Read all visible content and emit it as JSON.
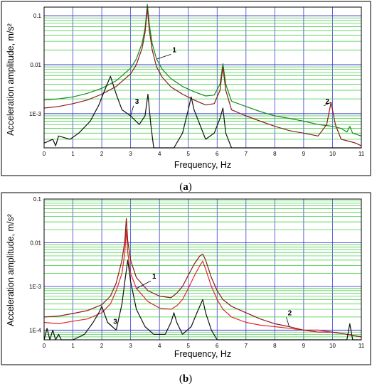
{
  "captions": [
    {
      "open": "(",
      "letter": "a",
      "close": ")"
    },
    {
      "open": "(",
      "letter": "b",
      "close": ")"
    }
  ],
  "chart_data": [
    {
      "type": "line",
      "panel": "a",
      "xlabel": "Frequency, Hz",
      "ylabel": "Acceleration amplitude, m/s²",
      "xlim": [
        0,
        11
      ],
      "ylim": [
        0.0002,
        0.15
      ],
      "yscale": "log",
      "grid": true,
      "xticks": [
        "0",
        "1",
        "2",
        "3",
        "4",
        "5",
        "6",
        "7",
        "8",
        "9",
        "10",
        "11"
      ],
      "yticks": [
        {
          "value": 0.1,
          "label": "0.1"
        },
        {
          "value": 0.01,
          "label": "0.01"
        },
        {
          "value": 0.001,
          "label": "1E-3"
        }
      ],
      "series": [
        {
          "name": "1",
          "color": "#1a8a1a",
          "x": [
            0,
            0.5,
            1,
            1.5,
            2,
            2.5,
            3,
            3.2,
            3.4,
            3.5,
            3.58,
            3.65,
            3.75,
            3.9,
            4.1,
            4.4,
            4.8,
            5.2,
            5.6,
            5.9,
            6.1,
            6.2,
            6.3,
            6.5,
            7,
            7.5,
            8,
            8.5,
            9,
            9.5,
            10,
            10.3,
            10.5,
            10.6,
            10.7,
            11
          ],
          "y": [
            0.0019,
            0.002,
            0.0022,
            0.0026,
            0.0033,
            0.0047,
            0.0085,
            0.013,
            0.028,
            0.055,
            0.17,
            0.065,
            0.027,
            0.013,
            0.008,
            0.0052,
            0.0036,
            0.0028,
            0.0023,
            0.0024,
            0.004,
            0.0105,
            0.004,
            0.0018,
            0.0014,
            0.0011,
            0.0009,
            0.0008,
            0.0007,
            0.0006,
            0.00055,
            0.0005,
            0.00042,
            0.00055,
            0.0004,
            0.00035
          ]
        },
        {
          "name": "2",
          "color": "#8b1a1a",
          "x": [
            0,
            0.5,
            1,
            1.5,
            2,
            2.5,
            3,
            3.2,
            3.4,
            3.5,
            3.58,
            3.65,
            3.75,
            3.9,
            4.1,
            4.4,
            4.8,
            5.2,
            5.6,
            5.9,
            6.1,
            6.2,
            6.3,
            6.5,
            7,
            7.5,
            8,
            8.5,
            9,
            9.5,
            9.8,
            9.95,
            10.1,
            10.3,
            10.6,
            10.8,
            11
          ],
          "y": [
            0.0013,
            0.0014,
            0.0016,
            0.0019,
            0.0025,
            0.0036,
            0.0065,
            0.01,
            0.022,
            0.045,
            0.14,
            0.05,
            0.02,
            0.009,
            0.0055,
            0.0035,
            0.0025,
            0.0019,
            0.0015,
            0.0016,
            0.003,
            0.009,
            0.003,
            0.0012,
            0.0009,
            0.0007,
            0.00055,
            0.00045,
            0.0004,
            0.00035,
            0.0006,
            0.0017,
            0.0006,
            0.0003,
            0.00027,
            0.00025,
            0.00022
          ]
        },
        {
          "name": "3",
          "color": "#111111",
          "x": [
            0,
            0.3,
            0.4,
            0.5,
            0.9,
            1.2,
            1.6,
            1.9,
            2.1,
            2.3,
            2.5,
            2.7,
            3.0,
            3.3,
            3.5,
            3.6,
            3.7,
            3.8,
            4.0,
            4.5,
            4.8,
            5.0,
            5.1,
            5.2,
            5.4,
            5.6,
            5.9,
            6.1,
            6.2,
            6.3,
            6.5,
            7,
            8,
            11
          ],
          "y": [
            0.00025,
            0.0003,
            0.00022,
            0.00035,
            0.0003,
            0.0004,
            0.0007,
            0.0015,
            0.003,
            0.0058,
            0.0025,
            0.0012,
            0.0009,
            0.0006,
            0.0009,
            0.0025,
            0.0006,
            0.0002,
            0.0002,
            0.0002,
            0.0004,
            0.0012,
            0.0022,
            0.0012,
            0.0006,
            0.0003,
            0.0004,
            0.0008,
            0.0013,
            0.0004,
            0.0002,
            0.0002,
            0.0002,
            0.0002
          ]
        }
      ],
      "annotations": [
        {
          "text": "1",
          "x": 4.45,
          "y": 0.018
        },
        {
          "text": "2",
          "x": 9.75,
          "y": 0.0016
        },
        {
          "text": "3",
          "x": 3.15,
          "y": 0.0016
        }
      ]
    },
    {
      "type": "line",
      "panel": "b",
      "xlabel": "Frequency, Hz",
      "ylabel": "Acceleration amplitude, m/s²",
      "xlim": [
        0,
        11
      ],
      "ylim": [
        6e-05,
        0.1
      ],
      "yscale": "log",
      "grid": true,
      "xticks": [
        "0",
        "1",
        "2",
        "3",
        "4",
        "5",
        "6",
        "7",
        "8",
        "9",
        "10",
        "11"
      ],
      "yticks": [
        {
          "value": 0.1,
          "label": "0.1"
        },
        {
          "value": 0.01,
          "label": "0.01"
        },
        {
          "value": 0.001,
          "label": "1E-3"
        },
        {
          "value": 0.0001,
          "label": "1E-4"
        }
      ],
      "series": [
        {
          "name": "1",
          "color": "#e0282a",
          "x": [
            0,
            0.5,
            1,
            1.5,
            2,
            2.3,
            2.5,
            2.7,
            2.8,
            2.85,
            2.9,
            3.0,
            3.2,
            3.6,
            4,
            4.4,
            4.6,
            4.8,
            5.0,
            5.2,
            5.4,
            5.5,
            5.6,
            5.8,
            6,
            6.2,
            6.5,
            7,
            7.5,
            8,
            8.5,
            9,
            9.5,
            10,
            10.5,
            11
          ],
          "y": [
            0.00015,
            0.00014,
            0.00016,
            0.00018,
            0.00025,
            0.0004,
            0.0008,
            0.002,
            0.006,
            0.02,
            0.006,
            0.002,
            0.0009,
            0.00045,
            0.00032,
            0.0003,
            0.00036,
            0.0005,
            0.0009,
            0.0017,
            0.003,
            0.0038,
            0.0025,
            0.001,
            0.0005,
            0.0003,
            0.0002,
            0.00015,
            0.00013,
            0.00012,
            0.00011,
            0.0001,
            0.0001,
            9e-05,
            8e-05,
            7e-05
          ]
        },
        {
          "name": "2",
          "color": "#8b1a1a",
          "x": [
            0,
            0.5,
            1,
            1.5,
            2,
            2.3,
            2.5,
            2.7,
            2.8,
            2.85,
            2.9,
            3.0,
            3.2,
            3.6,
            4,
            4.4,
            4.6,
            4.8,
            5.0,
            5.2,
            5.4,
            5.5,
            5.6,
            5.8,
            6,
            6.2,
            6.5,
            7,
            7.5,
            8,
            8.5,
            9,
            9.5,
            10,
            10.5,
            11
          ],
          "y": [
            0.0002,
            0.00021,
            0.00024,
            0.00028,
            0.00038,
            0.0006,
            0.0012,
            0.004,
            0.011,
            0.036,
            0.011,
            0.004,
            0.0016,
            0.0008,
            0.0006,
            0.00055,
            0.0007,
            0.001,
            0.0018,
            0.0032,
            0.005,
            0.0055,
            0.004,
            0.0016,
            0.0008,
            0.0005,
            0.00035,
            0.00025,
            0.00018,
            0.00014,
            0.00012,
            0.0001,
            9e-05,
            9e-05,
            8e-05,
            7e-05
          ]
        },
        {
          "name": "3",
          "color": "#111111",
          "x": [
            0,
            0.1,
            0.2,
            0.3,
            0.4,
            0.5,
            0.6,
            1.0,
            1.4,
            1.7,
            1.9,
            2.0,
            2.2,
            2.5,
            2.7,
            2.8,
            2.9,
            3.0,
            3.2,
            3.5,
            3.8,
            4.2,
            4.4,
            4.5,
            4.6,
            4.8,
            5.1,
            5.3,
            5.5,
            5.6,
            5.8,
            6.0,
            6.5,
            10.5,
            10.6,
            10.7,
            11
          ],
          "y": [
            6e-05,
            0.00011,
            6e-05,
            0.0001,
            6e-05,
            8e-05,
            6e-05,
            6e-05,
            8e-05,
            0.00015,
            0.00025,
            0.00035,
            0.00015,
            0.0001,
            0.0004,
            0.0013,
            0.004,
            0.0013,
            0.0003,
            0.00012,
            8e-05,
            8e-05,
            0.00015,
            0.00025,
            0.00015,
            8e-05,
            0.00012,
            0.00025,
            0.0005,
            0.00025,
            0.0001,
            6e-05,
            6e-05,
            6e-05,
            0.00014,
            6e-05,
            6e-05
          ]
        }
      ],
      "annotations": [
        {
          "text": "1",
          "x": 3.75,
          "y": 0.0015
        },
        {
          "text": "2",
          "x": 8.45,
          "y": 0.00022
        },
        {
          "text": "3",
          "x": 2.4,
          "y": 0.00014
        }
      ]
    }
  ]
}
